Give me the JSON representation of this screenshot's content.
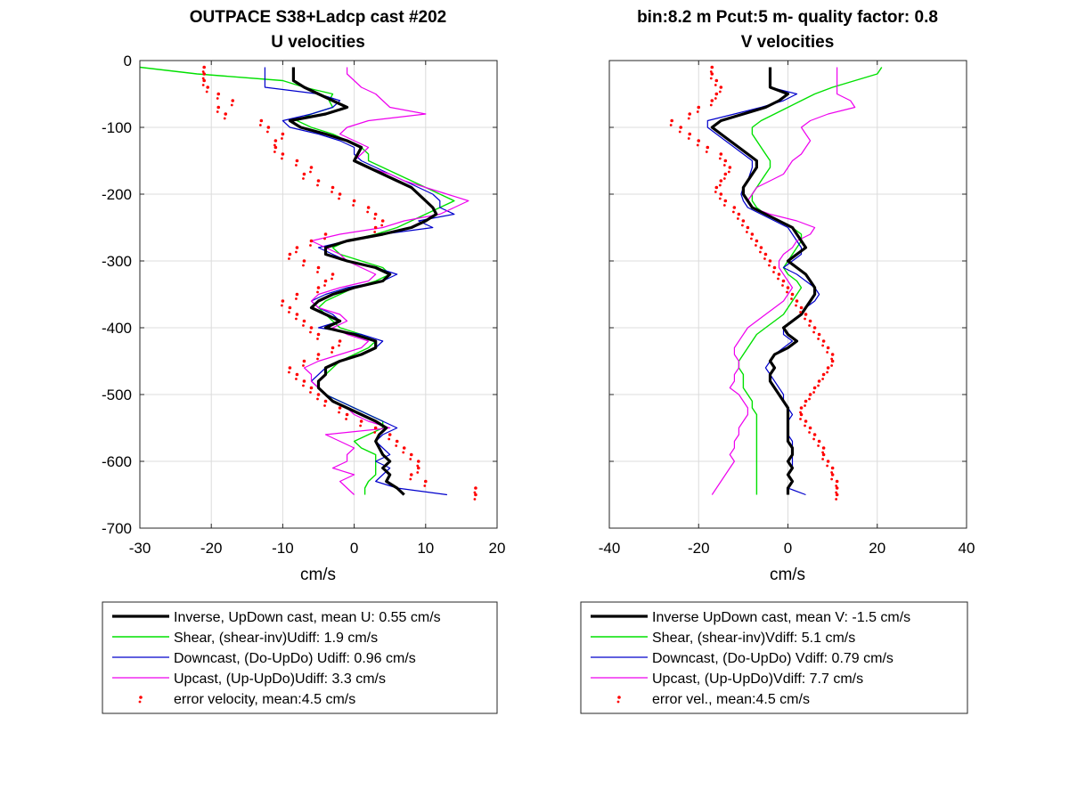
{
  "chart_data": [
    {
      "type": "line",
      "title": [
        "OUTPACE S38+Ladcp cast #202",
        "U velocities"
      ],
      "xlabel": "cm/s",
      "ylabel": "",
      "xlim": [
        -30,
        20
      ],
      "ylim": [
        -700,
        0
      ],
      "xticks": [
        -30,
        -20,
        -10,
        0,
        10,
        20
      ],
      "yticks": [
        0,
        -100,
        -200,
        -300,
        -400,
        -500,
        -600,
        -700
      ],
      "ytick_labels": [
        "0",
        "-100",
        "-200",
        "-300",
        "-400",
        "-500",
        "-600",
        "-700"
      ],
      "grid": true,
      "legend_position": "below",
      "legend": [
        "Inverse, UpDown cast, mean U:  0.55 cm/s",
        "Shear, (shear-inv)Udiff:  1.9 cm/s",
        "Downcast, (Do-UpDo) Udiff:  0.96 cm/s",
        "Upcast, (Up-UpDo)Udiff:  3.3 cm/s",
        "error velocity, mean:4.5 cm/s"
      ],
      "depth": [
        -10,
        -20,
        -30,
        -40,
        -50,
        -60,
        -70,
        -80,
        -90,
        -100,
        -110,
        -120,
        -130,
        -140,
        -150,
        -160,
        -170,
        -180,
        -190,
        -200,
        -210,
        -220,
        -230,
        -240,
        -250,
        -260,
        -270,
        -280,
        -290,
        -300,
        -310,
        -320,
        -330,
        -340,
        -350,
        -360,
        -370,
        -380,
        -390,
        -400,
        -410,
        -420,
        -430,
        -440,
        -450,
        -460,
        -470,
        -480,
        -490,
        -500,
        -510,
        -520,
        -530,
        -540,
        -550,
        -560,
        -570,
        -580,
        -590,
        -600,
        -610,
        -620,
        -630,
        -640,
        -650
      ],
      "series": [
        {
          "name": "Inverse",
          "color": "#000000",
          "width": 3.2,
          "x": [
            -8.5,
            -8.5,
            -8.5,
            -7,
            -5,
            -3,
            -1,
            -4,
            -9,
            -7.5,
            -4,
            -1,
            1,
            0.5,
            0,
            2,
            4,
            6,
            8,
            9,
            10,
            11,
            11.5,
            10,
            8,
            4,
            -1,
            -4,
            -4,
            -1,
            3,
            5,
            4,
            0,
            -3,
            -5,
            -6,
            -4,
            -2,
            -4,
            0,
            3,
            3,
            1,
            -2,
            -4,
            -4,
            -5,
            -5,
            -4,
            -3,
            -1,
            1,
            3,
            4.5,
            3.5,
            3,
            3.5,
            4,
            5,
            4,
            5,
            4.5,
            6,
            7
          ]
        },
        {
          "name": "Shear",
          "color": "#00e000",
          "width": 1.4,
          "x": [
            -30,
            -22,
            -10,
            -7,
            -3,
            -3.5,
            -3,
            -6,
            -8,
            -6,
            -3,
            -1,
            1,
            2,
            2,
            4,
            6,
            8,
            10,
            12,
            14,
            12,
            10,
            8,
            6,
            3,
            -1,
            -3,
            -2,
            1,
            4,
            5,
            3,
            0,
            -2,
            -4,
            -5,
            -4,
            -3,
            -2,
            1,
            3,
            2,
            0,
            -2,
            -3,
            -4,
            -5,
            -5,
            -4,
            -2,
            0,
            2,
            4,
            4,
            2,
            0,
            1,
            3,
            3,
            3,
            3,
            2,
            1.5,
            1.5
          ]
        },
        {
          "name": "Downcast",
          "color": "#0000cc",
          "width": 1.2,
          "x": [
            -12.5,
            -12.5,
            -12.5,
            -12.5,
            -5,
            -2,
            -3,
            -6,
            -10,
            -9,
            -5,
            -2,
            0,
            0,
            1,
            3,
            5,
            7,
            9,
            11,
            12,
            12,
            14,
            9,
            11,
            4,
            -1,
            -5,
            -3,
            -1,
            3,
            6,
            4,
            -1,
            -4,
            -6,
            -5,
            -3,
            -2,
            -5,
            1,
            4,
            3,
            1,
            -2,
            -4,
            -5,
            -6,
            -5,
            -4,
            -2,
            0,
            2,
            4,
            6,
            4,
            3,
            4,
            5,
            3,
            5,
            4,
            3,
            6,
            13
          ]
        },
        {
          "name": "Upcast",
          "color": "#ee00ee",
          "width": 1.2,
          "x": [
            -1,
            -1,
            0,
            1,
            3,
            4,
            5,
            10,
            2,
            -1,
            -2,
            0,
            2,
            1,
            0,
            2,
            5,
            7,
            10,
            13,
            16,
            14,
            12,
            7,
            4,
            -2,
            -6,
            -4,
            -2,
            -1,
            1,
            3,
            2,
            -2,
            -5,
            -6,
            -5,
            -2,
            -1,
            -3,
            -1,
            2,
            1,
            -2,
            -5,
            -7,
            -6,
            -6,
            -5,
            -4,
            -3,
            -1,
            0,
            2,
            5,
            -4,
            -2,
            0,
            -1,
            -1,
            -3,
            0,
            -2,
            -1,
            0
          ]
        },
        {
          "name": "error velocity",
          "color": "#ff0000",
          "marker": "dot",
          "x": [
            -21,
            -21,
            -21,
            -20.5,
            -19,
            -17,
            -19,
            -18,
            -13,
            -12,
            -10,
            -11,
            -11,
            -10,
            -8,
            -6,
            -7,
            -5,
            -3,
            -2,
            0,
            2,
            3,
            4,
            3,
            -4,
            -6,
            -8,
            -9,
            -7,
            -5,
            -3,
            -4,
            -5,
            -8,
            -10,
            -9,
            -8,
            -7,
            -6,
            -5,
            -2,
            -3,
            -5,
            -7,
            -9,
            -8,
            -7,
            -6,
            -5,
            -4,
            -2,
            -1,
            1,
            3,
            5,
            6,
            7,
            8,
            9,
            9,
            8,
            10,
            17,
            17
          ]
        }
      ]
    },
    {
      "type": "line",
      "title": [
        "bin:8.2 m  Pcut:5 m- quality factor:  0.8",
        "V velocities"
      ],
      "xlabel": "cm/s",
      "ylabel": "",
      "xlim": [
        -40,
        40
      ],
      "ylim": [
        -700,
        0
      ],
      "xticks": [
        -40,
        -20,
        0,
        20,
        40
      ],
      "yticks": [
        0,
        -100,
        -200,
        -300,
        -400,
        -500,
        -600,
        -700
      ],
      "grid": true,
      "legend_position": "below",
      "legend": [
        "Inverse UpDown cast, mean V:  -1.5 cm/s",
        "Shear, (shear-inv)Vdiff:  5.1 cm/s",
        "Downcast, (Do-UpDo) Vdiff:  0.79 cm/s",
        "Upcast, (Up-UpDo)Vdiff:  7.7 cm/s",
        "error vel., mean:4.5 cm/s"
      ],
      "depth": [
        -10,
        -20,
        -30,
        -40,
        -50,
        -60,
        -70,
        -80,
        -90,
        -100,
        -110,
        -120,
        -130,
        -140,
        -150,
        -160,
        -170,
        -180,
        -190,
        -200,
        -210,
        -220,
        -230,
        -240,
        -250,
        -260,
        -270,
        -280,
        -290,
        -300,
        -310,
        -320,
        -330,
        -340,
        -350,
        -360,
        -370,
        -380,
        -390,
        -400,
        -410,
        -420,
        -430,
        -440,
        -450,
        -460,
        -470,
        -480,
        -490,
        -500,
        -510,
        -520,
        -530,
        -540,
        -550,
        -560,
        -570,
        -580,
        -590,
        -600,
        -610,
        -620,
        -630,
        -640,
        -650
      ],
      "series": [
        {
          "name": "Inverse",
          "color": "#000000",
          "width": 3.2,
          "x": [
            -4,
            -4,
            -4,
            -4,
            0,
            -2,
            -5,
            -10,
            -15,
            -17,
            -15,
            -13,
            -11,
            -9,
            -7,
            -7,
            -8,
            -9,
            -10,
            -10,
            -9,
            -8,
            -5,
            -2,
            1,
            2,
            3,
            4,
            2,
            0,
            2,
            4,
            5,
            6,
            6,
            5,
            4,
            3,
            1,
            -1,
            0,
            2,
            0,
            -3,
            -4,
            -3,
            -4,
            -4,
            -3,
            -2,
            -1,
            0,
            0,
            0,
            0,
            0,
            0,
            1,
            1,
            0,
            1,
            0,
            1,
            0,
            0
          ]
        },
        {
          "name": "Shear",
          "color": "#00e000",
          "width": 1.4,
          "x": [
            21,
            20,
            15,
            10,
            6,
            3,
            0,
            -3,
            -6,
            -8,
            -8,
            -7,
            -6,
            -5,
            -4,
            -4,
            -5,
            -6,
            -7,
            -8,
            -8,
            -7,
            -5,
            -2,
            1,
            3,
            3,
            2,
            1,
            0,
            -1,
            0,
            2,
            3,
            2,
            1,
            0,
            -1,
            -3,
            -5,
            -7,
            -8,
            -9,
            -10,
            -11,
            -11,
            -10,
            -10,
            -10,
            -9,
            -8,
            -8,
            -7,
            -7,
            -7,
            -7,
            -7,
            -7,
            -7,
            -7,
            -7,
            -7,
            -7,
            -7,
            -7
          ]
        },
        {
          "name": "Downcast",
          "color": "#0000cc",
          "width": 1.2,
          "x": [
            -4,
            -4,
            -4,
            -4,
            2,
            -1,
            -6,
            -12,
            -18,
            -18,
            -16,
            -14,
            -12,
            -10,
            -8,
            -8,
            -8.5,
            -9,
            -10,
            -10.5,
            -10,
            -9,
            -6,
            -3,
            0,
            1,
            2,
            3,
            3,
            1,
            -1,
            2,
            4,
            6,
            7,
            6,
            4,
            3,
            1,
            -1,
            -1,
            1,
            -1,
            -3,
            -4,
            -5,
            -4,
            -3,
            -2,
            -1,
            -1,
            0,
            1,
            0,
            0,
            0,
            1,
            1,
            1,
            1,
            1,
            0,
            1,
            0,
            4
          ]
        },
        {
          "name": "Upcast",
          "color": "#ee00ee",
          "width": 1.2,
          "x": [
            11,
            11,
            11,
            11,
            11,
            14,
            15,
            9,
            5,
            3,
            4,
            5,
            4,
            3,
            1,
            0,
            -1,
            -4,
            -7,
            -8,
            -9,
            -8,
            -4,
            2,
            6,
            5,
            2,
            1,
            -1,
            -2,
            -2,
            -1,
            0,
            1,
            0,
            -1,
            -3,
            -5,
            -7,
            -9,
            -10,
            -11,
            -12,
            -12,
            -11,
            -11,
            -12,
            -12,
            -13,
            -11,
            -10,
            -9,
            -9,
            -10,
            -11,
            -11,
            -12,
            -12,
            -13,
            -12,
            -13,
            -14,
            -15,
            -16,
            -17
          ]
        },
        {
          "name": "error vel.",
          "color": "#ff0000",
          "marker": "dot",
          "x": [
            -17,
            -17,
            -16,
            -15,
            -16,
            -17,
            -20,
            -22,
            -26,
            -24,
            -22,
            -20,
            -18,
            -15,
            -14,
            -13,
            -14,
            -15,
            -16,
            -15,
            -14,
            -12,
            -11,
            -10,
            -9,
            -8,
            -7,
            -6,
            -5,
            -4,
            -3,
            -2,
            -1,
            0,
            1,
            2,
            3,
            4,
            5,
            6,
            7,
            8,
            9,
            10,
            10,
            9,
            8,
            7,
            6,
            5,
            4,
            3,
            3,
            4,
            5,
            6,
            7,
            8,
            8,
            9,
            10,
            10,
            11,
            11,
            11
          ]
        }
      ]
    }
  ]
}
